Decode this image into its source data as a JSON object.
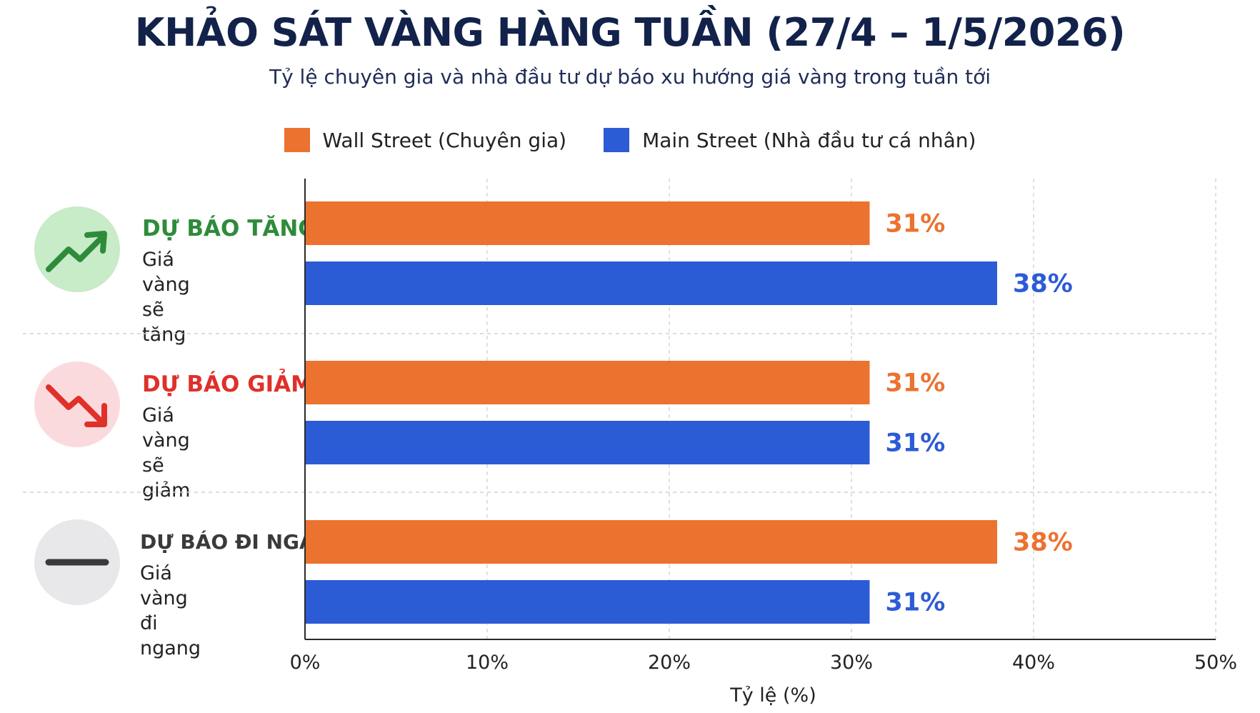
{
  "title": "KHẢO SÁT VÀNG HÀNG TUẦN (27/4 – 1/5/2026)",
  "subtitle": "Tỷ lệ chuyên gia và nhà đầu tư dự báo xu hướng giá vàng trong tuần tới",
  "legend": [
    {
      "label": "Wall Street (Chuyên gia)",
      "color": "#ec7230"
    },
    {
      "label": "Main Street (Nhà đầu tư cá nhân)",
      "color": "#2c5bd6"
    }
  ],
  "categories": [
    {
      "title": "DỰ BÁO TĂNG",
      "desc_line1": "Giá vàng",
      "desc_line2": "sẽ tăng",
      "color": "#2e8b3a",
      "icon": "trend-up-icon",
      "icon_bg": "#c8ebc8"
    },
    {
      "title": "DỰ BÁO GIẢM",
      "desc_line1": "Giá vàng",
      "desc_line2": "sẽ giảm",
      "color": "#e0302a",
      "icon": "trend-down-icon",
      "icon_bg": "#fbdadd"
    },
    {
      "title": "DỰ BÁO ĐI NGANG",
      "desc_line1": "Giá vàng",
      "desc_line2": "đi ngang",
      "color": "#3a3a3a",
      "icon": "flat-line-icon",
      "icon_bg": "#e8e8ea"
    }
  ],
  "chart_data": {
    "type": "bar",
    "orientation": "horizontal",
    "categories": [
      "DỰ BÁO TĂNG",
      "DỰ BÁO GIẢM",
      "DỰ BÁO ĐI NGANG"
    ],
    "series": [
      {
        "name": "Wall Street (Chuyên gia)",
        "values": [
          31,
          31,
          38
        ],
        "labels": [
          "31%",
          "31%",
          "38%"
        ],
        "color": "#ec7230"
      },
      {
        "name": "Main Street (Nhà đầu tư cá nhân)",
        "values": [
          38,
          31,
          31
        ],
        "labels": [
          "38%",
          "31%",
          "31%"
        ],
        "color": "#2c5bd6"
      }
    ],
    "xlabel": "Tỷ lệ (%)",
    "xlim": [
      0,
      50
    ],
    "xticks": [
      0,
      10,
      20,
      30,
      40,
      50
    ],
    "xtick_labels": [
      "0%",
      "10%",
      "20%",
      "30%",
      "40%",
      "50%"
    ],
    "grid": true,
    "legend": "top-center"
  }
}
